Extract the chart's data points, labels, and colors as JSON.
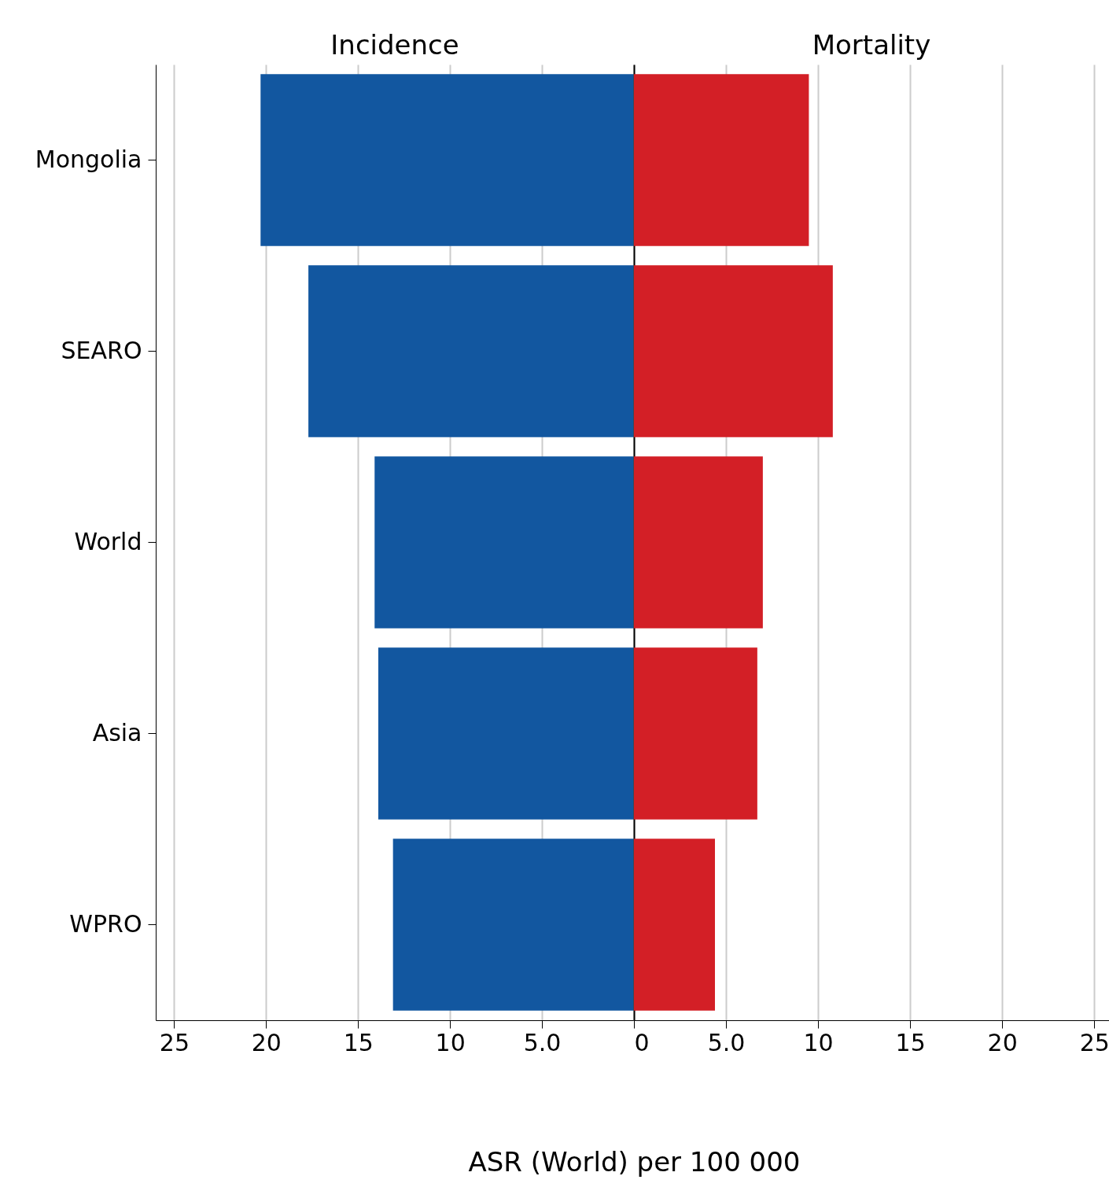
{
  "chart_data": [
    {
      "type": "bar",
      "orientation": "horizontal",
      "title": "Incidence",
      "categories": [
        "Mongolia",
        "SEARO",
        "World",
        "Asia",
        "WPRO"
      ],
      "series": [
        {
          "color": "#1257a0",
          "values": [
            20.3,
            17.7,
            14.1,
            13.9,
            13.1
          ]
        }
      ],
      "xlim": [
        26,
        0
      ],
      "xticks": [
        25,
        20,
        15,
        10,
        {
          "value": 5,
          "label": "5.0"
        }
      ],
      "grid": "x"
    },
    {
      "type": "bar",
      "orientation": "horizontal",
      "title": "Mortality",
      "xlabel": "ASR (World) per 100 000",
      "series": [
        {
          "color": "#d31f26",
          "values": [
            9.5,
            10.8,
            7.0,
            6.7,
            4.4
          ]
        }
      ],
      "xlim": [
        0,
        25.8
      ],
      "xticks": [
        0,
        {
          "value": 5,
          "label": "5.0"
        },
        10,
        15,
        20,
        25
      ],
      "grid": "x",
      "tick_labels": "x"
    }
  ]
}
